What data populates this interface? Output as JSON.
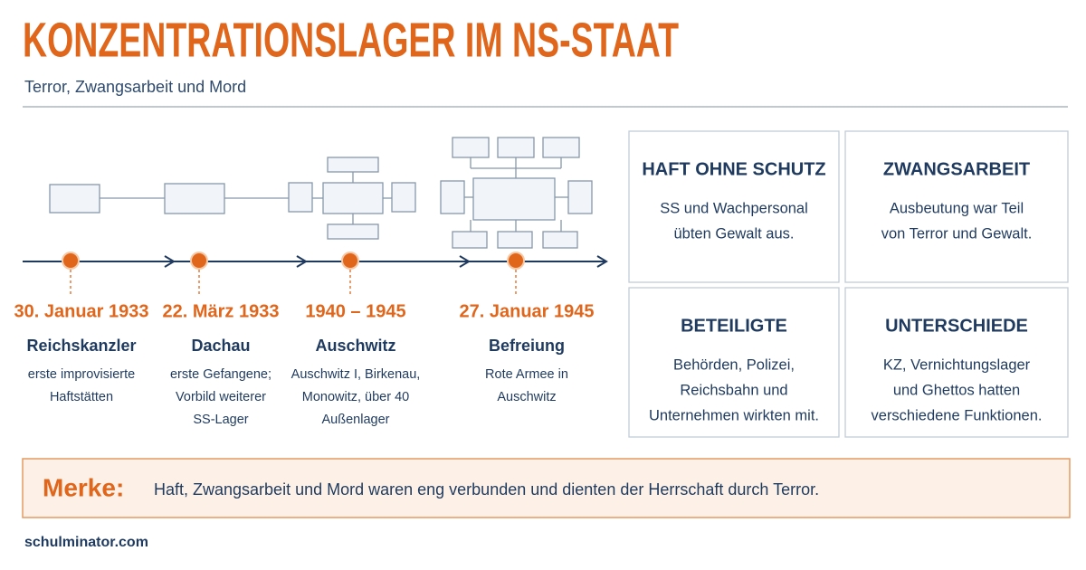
{
  "header": {
    "title": "KONZENTRATIONSLAGER IM NS-STAAT",
    "subtitle": "Terror, Zwangsarbeit und Mord"
  },
  "timeline": {
    "events": [
      {
        "date": "30. Januar 1933",
        "title": "Reichskanzler",
        "lines": [
          "erste improvisierte",
          "Haftstätten"
        ]
      },
      {
        "date": "22. März 1933",
        "title": "Dachau",
        "lines": [
          "erste Gefangene;",
          "Vorbild weiterer",
          "SS-Lager"
        ]
      },
      {
        "date": "1940 – 1945",
        "title": "Auschwitz",
        "lines": [
          "Auschwitz I, Birkenau,",
          "Monowitz, über 40",
          "Außenlager"
        ]
      },
      {
        "date": "27. Januar 1945",
        "title": "Befreiung",
        "lines": [
          "Rote Armee in",
          "Auschwitz"
        ]
      }
    ]
  },
  "cards": [
    {
      "title": "HAFT OHNE SCHUTZ",
      "lines": [
        "SS und Wachpersonal",
        "übten Gewalt aus."
      ]
    },
    {
      "title": "ZWANGSARBEIT",
      "lines": [
        "Ausbeutung war Teil",
        "von Terror und Gewalt."
      ]
    },
    {
      "title": "BETEILIGTE",
      "lines": [
        "Behörden, Polizei,",
        "Reichsbahn und",
        "Unternehmen wirkten mit."
      ]
    },
    {
      "title": "UNTERSCHIEDE",
      "lines": [
        "KZ, Vernichtungslager",
        "und Ghettos hatten",
        "verschiedene Funktionen."
      ]
    }
  ],
  "note": {
    "label": "Merke:",
    "text": "Haft, Zwangsarbeit und Mord waren eng verbunden und dienten der Herrschaft durch Terror."
  },
  "footer": "schulminator.com"
}
